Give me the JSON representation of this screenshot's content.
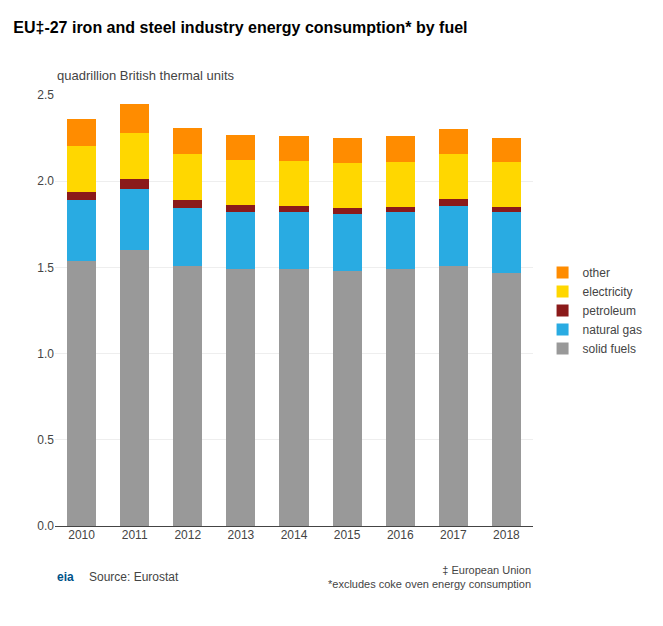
{
  "chart_data": {
    "type": "bar",
    "stacked": true,
    "title": "EU‡-27 iron and steel industry energy consumption* by fuel",
    "subtitle": "quadrillion British thermal units",
    "categories": [
      "2010",
      "2011",
      "2012",
      "2013",
      "2014",
      "2015",
      "2016",
      "2017",
      "2018"
    ],
    "series": [
      {
        "name": "solid fuels",
        "color": "#999999",
        "values": [
          1.54,
          1.6,
          1.51,
          1.49,
          1.49,
          1.48,
          1.49,
          1.51,
          1.47
        ]
      },
      {
        "name": "natural gas",
        "color": "#29ABE2",
        "values": [
          0.35,
          0.355,
          0.335,
          0.33,
          0.33,
          0.33,
          0.33,
          0.345,
          0.35
        ]
      },
      {
        "name": "petroleum",
        "color": "#8B1A1A",
        "values": [
          0.05,
          0.06,
          0.045,
          0.04,
          0.035,
          0.035,
          0.033,
          0.04,
          0.033
        ]
      },
      {
        "name": "electricity",
        "color": "#FFD700",
        "values": [
          0.265,
          0.265,
          0.265,
          0.265,
          0.26,
          0.26,
          0.26,
          0.26,
          0.26
        ]
      },
      {
        "name": "other",
        "color": "#FF8C00",
        "values": [
          0.155,
          0.17,
          0.155,
          0.145,
          0.145,
          0.145,
          0.147,
          0.145,
          0.137
        ]
      }
    ],
    "ylim": [
      0,
      2.5
    ],
    "yticks": [
      {
        "value": 0.0,
        "label": "0.0"
      },
      0.5,
      {
        "value": 1.0,
        "label": "1.0"
      },
      1.5,
      {
        "value": 2.0,
        "label": "2.0"
      },
      2.5
    ],
    "grid": true,
    "legend": "right",
    "annotations": [
      "Source: Eurostat",
      "‡ European Union\n*excludes coke oven energy consumption",
      "eia"
    ]
  }
}
